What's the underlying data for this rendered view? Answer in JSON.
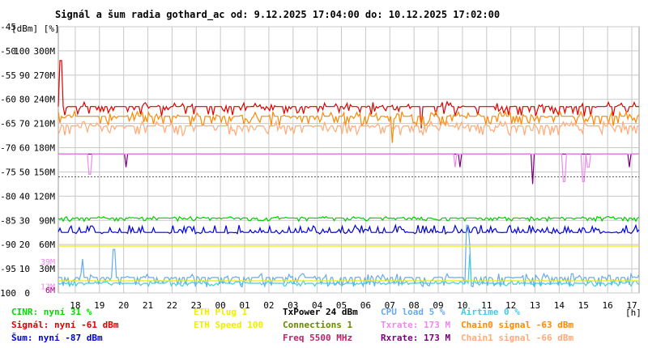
{
  "chart_data": {
    "type": "line",
    "title": "Signál a šum radia gothard_ac od: 9.12.2025 17:04:00 do: 10.12.2025 17:02:00",
    "ylabel": "[dBm] [%]",
    "xlabel": "[h]",
    "ylim": [
      -100,
      -45
    ],
    "y_ticks": [
      {
        "dbm": -45,
        "pct": "",
        "rate": ""
      },
      {
        "dbm": -50,
        "pct": "100",
        "rate": "300M"
      },
      {
        "dbm": -55,
        "pct": "90",
        "rate": "270M"
      },
      {
        "dbm": -60,
        "pct": "80",
        "rate": "240M"
      },
      {
        "dbm": -65,
        "pct": "70",
        "rate": "210M"
      },
      {
        "dbm": -70,
        "pct": "60",
        "rate": "180M"
      },
      {
        "dbm": -75,
        "pct": "50",
        "rate": "150M"
      },
      {
        "dbm": -80,
        "pct": "40",
        "rate": "120M"
      },
      {
        "dbm": -85,
        "pct": "30",
        "rate": "90M"
      },
      {
        "dbm": -90,
        "pct": "20",
        "rate": "60M"
      },
      {
        "dbm": -95,
        "pct": "10",
        "rate": "30M"
      },
      {
        "dbm": -100,
        "pct": "0",
        "rate": ""
      }
    ],
    "x_ticks": [
      "18",
      "19",
      "20",
      "21",
      "22",
      "23",
      "00",
      "01",
      "02",
      "03",
      "04",
      "05",
      "06",
      "07",
      "08",
      "09",
      "10",
      "11",
      "12",
      "13",
      "14",
      "15",
      "16",
      "17"
    ],
    "x_range_hours": [
      0,
      24
    ],
    "grid": true,
    "colored_ticks": [
      {
        "label": "39M",
        "value_dbm": -93.5,
        "color": "#ee88ee"
      },
      {
        "label": "13M",
        "value_dbm": -98.6,
        "color": "#ee88ee"
      },
      {
        "label": "6M",
        "value_dbm": -99.3,
        "color": "#990077"
      }
    ],
    "series": [
      {
        "name": "Signál",
        "color": "#dd0000",
        "base": -61.5,
        "band": [
          -63.5,
          -60.5
        ],
        "spikes": [
          [
            0.1,
            -52
          ],
          [
            15.0,
            -66
          ]
        ]
      },
      {
        "name": "Chain0 signal",
        "color": "#ff8800",
        "base": -63.5,
        "band": [
          -65.5,
          -62.5
        ],
        "spikes": [
          [
            13.8,
            -69
          ]
        ]
      },
      {
        "name": "Chain1 signal",
        "color": "#ffaa77",
        "base": -65.5,
        "band": [
          -67.5,
          -64.5
        ],
        "spikes": []
      },
      {
        "name": "Šum",
        "color": "#0000dd",
        "base": -87.5,
        "band": [
          -87.8,
          -86.0
        ],
        "spikes": []
      },
      {
        "name": "CINR",
        "color": "#00cc00",
        "base": -84.5,
        "band": [
          -85.2,
          -84.2
        ],
        "spikes": []
      },
      {
        "name": "Rxrate",
        "color": "#770077",
        "base": -71.3,
        "band": [
          -71.3,
          -71.3
        ],
        "spikes": [
          [
            2.8,
            -74
          ],
          [
            16.6,
            -74
          ],
          [
            19.6,
            -77.5
          ],
          [
            23.6,
            -74
          ]
        ]
      },
      {
        "name": "Txrate",
        "color": "#ee88ee",
        "base": -71.3,
        "band": [
          -71.3,
          -71.3
        ],
        "spikes": [
          [
            1.3,
            -75.5
          ],
          [
            16.4,
            -74
          ],
          [
            20.9,
            -77
          ],
          [
            21.7,
            -77
          ],
          [
            21.9,
            -74
          ]
        ]
      },
      {
        "name": "CPU load",
        "color": "#66aaee",
        "base": -96.8,
        "band": [
          -98.8,
          -96.0
        ],
        "spikes": [
          [
            1.0,
            -93
          ],
          [
            2.3,
            -91
          ],
          [
            16.9,
            -86
          ],
          [
            17.0,
            -90
          ]
        ]
      },
      {
        "name": "Airtime",
        "color": "#44ccdd",
        "base": -98.0,
        "band": [
          -98.6,
          -97.4
        ],
        "spikes": [
          [
            17.0,
            -92
          ]
        ]
      },
      {
        "name": "ETH Plug",
        "color": "#eeee00",
        "base": -90.3,
        "band": [
          -90.3,
          -90.3
        ],
        "spikes": []
      },
      {
        "name": "ETH Speed",
        "color": "#eeee00",
        "base": -97.5,
        "band": [
          -97.5,
          -97.5
        ],
        "spikes": []
      }
    ],
    "reference_lines": [
      {
        "name": "TxPower",
        "color": "#000000",
        "value_dbm": -76
      }
    ]
  },
  "legend": {
    "col1": [
      {
        "label": "CINR: nyní 31 %",
        "color": "#00dd00"
      },
      {
        "label": "Signál: nyní -61 dBm",
        "color": "#dd0000"
      },
      {
        "label": "Šum: nyní -87 dBm",
        "color": "#0000dd"
      }
    ],
    "col2": [
      {
        "label": "ETH Plug 1",
        "color": "#eeee00"
      },
      {
        "label": "ETH Speed 100",
        "color": "#eeee00"
      }
    ],
    "col3": [
      {
        "label": "TxPower 24 dBm",
        "color": "#000000"
      },
      {
        "label": "Connections 1",
        "color": "#668800"
      },
      {
        "label": "Freq 5500 MHz",
        "color": "#bb2266"
      }
    ],
    "col4": [
      {
        "label": "CPU load 5 %",
        "color": "#66aaee"
      },
      {
        "label": "Txrate: 173 M",
        "color": "#ee88ee"
      },
      {
        "label": "Rxrate: 173 M",
        "color": "#770077"
      }
    ],
    "col5": [
      {
        "label": "Airtime 0 %",
        "color": "#44ccdd"
      },
      {
        "label": "Chain0 signal -63 dBm",
        "color": "#ff8800"
      },
      {
        "label": "Chain1 signal -66 dBm",
        "color": "#ffaa77"
      }
    ]
  }
}
